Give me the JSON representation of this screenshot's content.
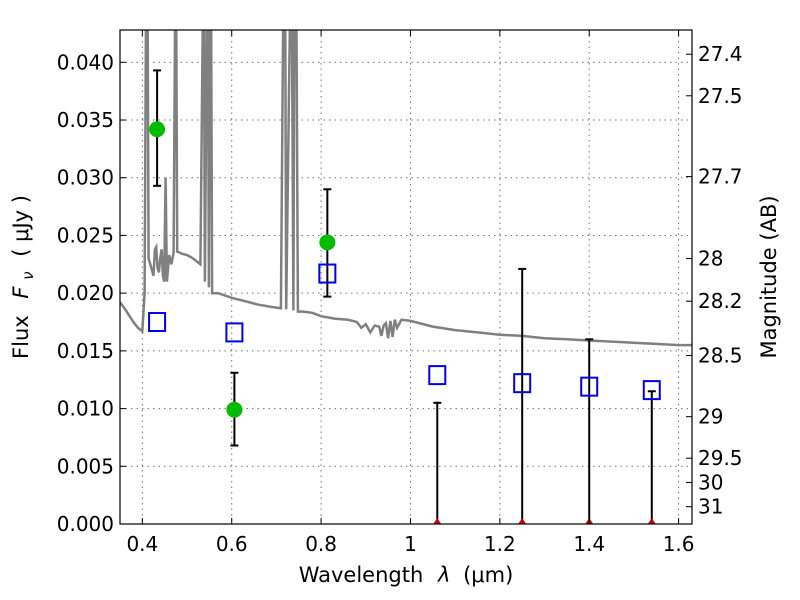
{
  "chart_data": {
    "type": "scatter",
    "title": "",
    "xlabel": "Wavelength",
    "xlabel_symbol": "λ",
    "xlabel_unit": "(μm)",
    "ylabel": "Flux",
    "ylabel_symbol": "F",
    "ylabel_subscript": "ν",
    "ylabel_unit": "( μJy )",
    "y2label": "Magnitude (AB)",
    "xlim": [
      0.35,
      1.63
    ],
    "ylim": [
      0.0,
      0.0428
    ],
    "grid": true,
    "x_ticks": [
      0.4,
      0.6,
      0.8,
      1.0,
      1.2,
      1.4,
      1.6
    ],
    "x_tick_labels": [
      "0.4",
      "0.6",
      "0.8",
      "1",
      "1.2",
      "1.4",
      "1.6"
    ],
    "y_ticks": [
      0.0,
      0.005,
      0.01,
      0.015,
      0.02,
      0.025,
      0.03,
      0.035,
      0.04
    ],
    "y_tick_labels": [
      "0.000",
      "0.005",
      "0.010",
      "0.015",
      "0.020",
      "0.025",
      "0.030",
      "0.035",
      "0.040"
    ],
    "magnitude_ticks": [
      {
        "label": "27.4",
        "flux": 0.0407
      },
      {
        "label": "27.5",
        "flux": 0.0371
      },
      {
        "label": "27.7",
        "flux": 0.0301
      },
      {
        "label": "28",
        "flux": 0.023
      },
      {
        "label": "28.2",
        "flux": 0.0193
      },
      {
        "label": "28.5",
        "flux": 0.0146
      },
      {
        "label": "29",
        "flux": 0.0093
      },
      {
        "label": "29.5",
        "flux": 0.0057
      },
      {
        "label": "30",
        "flux": 0.0036
      },
      {
        "label": "31",
        "flux": 0.0015
      }
    ],
    "series": [
      {
        "marker": "circle",
        "color": "#00bb00",
        "points": [
          {
            "x": 0.433,
            "y": 0.0342,
            "err_lo": 0.0293,
            "err_hi": 0.0393
          },
          {
            "x": 0.606,
            "y": 0.0099,
            "err_lo": 0.0068,
            "err_hi": 0.0131
          },
          {
            "x": 0.814,
            "y": 0.0244,
            "err_lo": 0.0197,
            "err_hi": 0.029
          },
          {
            "x": 1.06,
            "y": 0.0,
            "err_lo": 0.0,
            "err_hi": 0.0105
          },
          {
            "x": 1.25,
            "y": 0.0,
            "err_lo": 0.0,
            "err_hi": 0.0221
          },
          {
            "x": 1.4,
            "y": 0.0,
            "err_lo": 0.0,
            "err_hi": 0.016
          },
          {
            "x": 1.54,
            "y": 0.0,
            "err_lo": 0.0,
            "err_hi": 0.0115
          }
        ]
      },
      {
        "marker": "square",
        "color": "#0000ee",
        "points": [
          {
            "x": 0.433,
            "y": 0.0175
          },
          {
            "x": 0.606,
            "y": 0.0166
          },
          {
            "x": 0.814,
            "y": 0.0217
          },
          {
            "x": 1.06,
            "y": 0.0129
          },
          {
            "x": 1.25,
            "y": 0.0122
          },
          {
            "x": 1.4,
            "y": 0.0119
          },
          {
            "x": 1.54,
            "y": 0.0116
          }
        ]
      },
      {
        "marker": "line",
        "color": "#808080",
        "points": [
          [
            0.35,
            0.0192
          ],
          [
            0.36,
            0.0187
          ],
          [
            0.37,
            0.0181
          ],
          [
            0.38,
            0.0175
          ],
          [
            0.39,
            0.017
          ],
          [
            0.4,
            0.0167
          ],
          [
            0.405,
            0.02
          ],
          [
            0.408,
            0.043
          ],
          [
            0.412,
            0.043
          ],
          [
            0.414,
            0.023
          ],
          [
            0.42,
            0.0222
          ],
          [
            0.425,
            0.0215
          ],
          [
            0.428,
            0.0238
          ],
          [
            0.431,
            0.024
          ],
          [
            0.434,
            0.0222
          ],
          [
            0.437,
            0.0218
          ],
          [
            0.44,
            0.023
          ],
          [
            0.443,
            0.0238
          ],
          [
            0.446,
            0.0215
          ],
          [
            0.449,
            0.021
          ],
          [
            0.452,
            0.03
          ],
          [
            0.455,
            0.021
          ],
          [
            0.46,
            0.0233
          ],
          [
            0.465,
            0.0225
          ],
          [
            0.47,
            0.0235
          ],
          [
            0.473,
            0.043
          ],
          [
            0.476,
            0.043
          ],
          [
            0.478,
            0.0236
          ],
          [
            0.49,
            0.0234
          ],
          [
            0.5,
            0.0233
          ],
          [
            0.51,
            0.0231
          ],
          [
            0.52,
            0.0228
          ],
          [
            0.53,
            0.0225
          ],
          [
            0.535,
            0.043
          ],
          [
            0.538,
            0.043
          ],
          [
            0.54,
            0.021
          ],
          [
            0.544,
            0.043
          ],
          [
            0.547,
            0.043
          ],
          [
            0.549,
            0.0205
          ],
          [
            0.551,
            0.043
          ],
          [
            0.554,
            0.043
          ],
          [
            0.556,
            0.02
          ],
          [
            0.57,
            0.02
          ],
          [
            0.6,
            0.0196
          ],
          [
            0.63,
            0.0193
          ],
          [
            0.66,
            0.019
          ],
          [
            0.69,
            0.0188
          ],
          [
            0.71,
            0.0187
          ],
          [
            0.715,
            0.043
          ],
          [
            0.72,
            0.043
          ],
          [
            0.722,
            0.0186
          ],
          [
            0.73,
            0.043
          ],
          [
            0.735,
            0.043
          ],
          [
            0.738,
            0.0185
          ],
          [
            0.74,
            0.043
          ],
          [
            0.745,
            0.043
          ],
          [
            0.748,
            0.0184
          ],
          [
            0.76,
            0.0184
          ],
          [
            0.78,
            0.0183
          ],
          [
            0.8,
            0.018
          ],
          [
            0.83,
            0.0178
          ],
          [
            0.86,
            0.0177
          ],
          [
            0.88,
            0.0175
          ],
          [
            0.89,
            0.017
          ],
          [
            0.9,
            0.0173
          ],
          [
            0.91,
            0.0166
          ],
          [
            0.92,
            0.0172
          ],
          [
            0.93,
            0.0171
          ],
          [
            0.935,
            0.0163
          ],
          [
            0.94,
            0.0172
          ],
          [
            0.945,
            0.0174
          ],
          [
            0.95,
            0.0161
          ],
          [
            0.955,
            0.0176
          ],
          [
            0.96,
            0.0162
          ],
          [
            0.965,
            0.0177
          ],
          [
            0.97,
            0.017
          ],
          [
            0.98,
            0.0177
          ],
          [
            1.0,
            0.0176
          ],
          [
            1.05,
            0.0171
          ],
          [
            1.1,
            0.0168
          ],
          [
            1.15,
            0.0166
          ],
          [
            1.2,
            0.0164
          ],
          [
            1.25,
            0.0163
          ],
          [
            1.3,
            0.0161
          ],
          [
            1.35,
            0.016
          ],
          [
            1.4,
            0.0159
          ],
          [
            1.45,
            0.0158
          ],
          [
            1.5,
            0.0157
          ],
          [
            1.55,
            0.0156
          ],
          [
            1.6,
            0.0155
          ],
          [
            1.63,
            0.0155
          ]
        ]
      }
    ]
  }
}
